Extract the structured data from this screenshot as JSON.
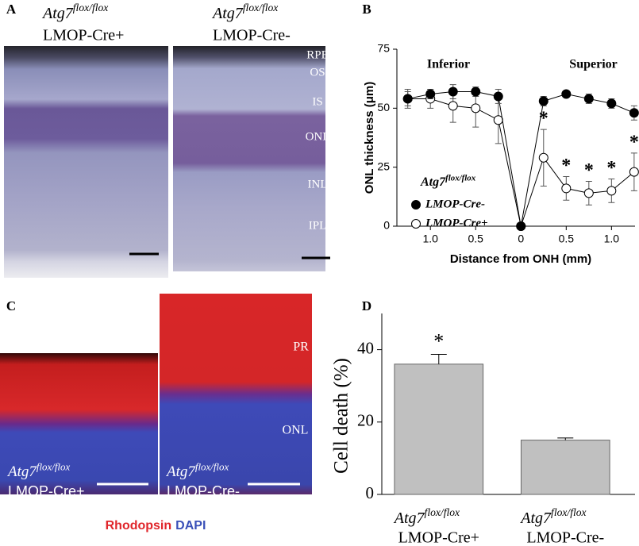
{
  "panels": {
    "a": {
      "label": "A",
      "images": [
        {
          "gene": "Atg7",
          "allele": "flox/flox",
          "line": "LMOP-Cre+"
        },
        {
          "gene": "Atg7",
          "allele": "flox/flox",
          "line": "LMOP-Cre-"
        }
      ],
      "layers": [
        "RPE",
        "OS",
        "IS",
        "ONL",
        "INL",
        "IPL"
      ]
    },
    "c": {
      "label": "C",
      "images": [
        {
          "gene": "Atg7",
          "allele": "flox/flox",
          "line": "LMOP-Cre+"
        },
        {
          "gene": "Atg7",
          "allele": "flox/flox",
          "line": "LMOP-Cre-"
        }
      ],
      "layers": [
        "PR",
        "ONL"
      ],
      "stains": [
        {
          "name": "Rhodopsin",
          "color": "#e0262b"
        },
        {
          "name": "DAPI",
          "color": "#3a50b8"
        }
      ]
    }
  },
  "chart_data": [
    {
      "type": "line",
      "panel_label": "B",
      "x": [
        -1.25,
        -1.0,
        -0.75,
        -0.5,
        -0.25,
        0,
        0.25,
        0.5,
        0.75,
        1.0,
        1.25
      ],
      "xlim": [
        -1.37,
        1.26
      ],
      "xticks": [
        {
          "value": -1,
          "label": "1.0"
        },
        {
          "value": -0.5,
          "label": "0.5"
        },
        0,
        0.5,
        {
          "value": 1,
          "label": "1.0"
        }
      ],
      "ylim": [
        0,
        75
      ],
      "yticks": [
        0,
        25,
        50,
        75
      ],
      "y_label": "ONL thickness (μm)",
      "x_label": "Distance from ONH (mm)",
      "region_labels": [
        {
          "text": "Inferior",
          "x": -0.8
        },
        {
          "text": "Superior",
          "x": 0.8
        }
      ],
      "legend_title": {
        "gene": "Atg7",
        "allele": "flox/flox"
      },
      "legend": "lower left",
      "series": [
        {
          "name": "LMOP-Cre-",
          "color": "#000000",
          "fill": "#000000",
          "values": [
            54,
            56,
            57,
            57,
            55,
            0,
            53,
            56,
            54,
            52,
            48
          ],
          "errors": [
            3,
            2,
            3,
            2,
            3,
            0,
            2,
            1,
            2,
            2,
            3
          ]
        },
        {
          "name": "LMOP-Cre+",
          "color": "#000000",
          "fill": "#ffffff",
          "values": [
            54,
            54,
            51,
            50,
            45,
            0,
            29,
            16,
            14,
            15,
            23
          ],
          "errors": [
            4,
            4,
            7,
            8,
            10,
            0,
            12,
            5,
            5,
            5,
            8
          ]
        }
      ],
      "annotations": [
        {
          "text": "*",
          "x": 0.25
        },
        {
          "text": "*",
          "x": 0.5
        },
        {
          "text": "*",
          "x": 0.75
        },
        {
          "text": "*",
          "x": 1.0
        },
        {
          "text": "*",
          "x": 1.25
        }
      ]
    },
    {
      "type": "bar",
      "panel_label": "D",
      "categories": [
        "LMOP-Cre+",
        "LMOP-Cre-"
      ],
      "category_prefix": {
        "gene": "Atg7",
        "allele": "flox/flox"
      },
      "values": [
        36,
        15
      ],
      "errors": [
        2.7,
        0.6
      ],
      "color": "#c0c0c0",
      "ylim": [
        0,
        50
      ],
      "yticks": [
        0,
        20,
        40
      ],
      "y_label": "Cell death (%)",
      "annotations": [
        {
          "text": "*",
          "category": 0
        }
      ]
    }
  ]
}
